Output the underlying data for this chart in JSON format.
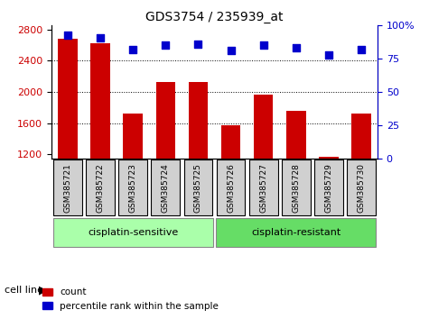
{
  "title": "GDS3754 / 235939_at",
  "samples": [
    "GSM385721",
    "GSM385722",
    "GSM385723",
    "GSM385724",
    "GSM385725",
    "GSM385726",
    "GSM385727",
    "GSM385728",
    "GSM385729",
    "GSM385730"
  ],
  "counts": [
    2680,
    2620,
    1720,
    2130,
    2130,
    1570,
    1970,
    1760,
    1170,
    1720
  ],
  "percentiles": [
    93,
    91,
    82,
    85,
    86,
    81,
    85,
    83,
    78,
    82
  ],
  "groups": [
    "cisplatin-sensitive",
    "cisplatin-sensitive",
    "cisplatin-sensitive",
    "cisplatin-sensitive",
    "cisplatin-sensitive",
    "cisplatin-resistant",
    "cisplatin-resistant",
    "cisplatin-resistant",
    "cisplatin-resistant",
    "cisplatin-resistant"
  ],
  "group_colors": [
    "#90EE90",
    "#00CC00"
  ],
  "bar_color": "#CC0000",
  "dot_color": "#0000CC",
  "ylim_left": [
    1150,
    2850
  ],
  "ylim_right": [
    0,
    100
  ],
  "yticks_left": [
    1200,
    1600,
    2000,
    2400,
    2800
  ],
  "yticks_right": [
    0,
    25,
    50,
    75,
    100
  ],
  "legend_count": "count",
  "legend_pct": "percentile rank within the sample",
  "cell_line_label": "cell line",
  "group_labels": [
    "cisplatin-sensitive",
    "cisplatin-resistant"
  ],
  "sensitive_color": "#AAFFAA",
  "resistant_color": "#66DD66",
  "tick_bg_color": "#D0D0D0"
}
